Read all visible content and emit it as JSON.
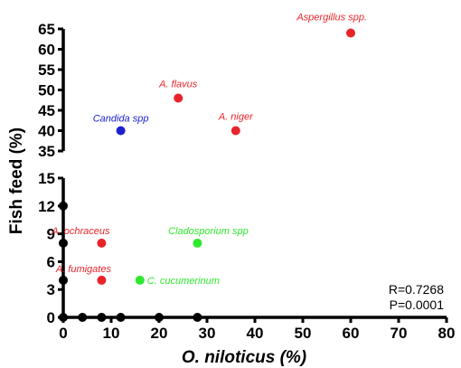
{
  "chart_data": {
    "type": "scatter",
    "xlabel": "O. niloticus (%)",
    "ylabel": "Fish feed (%)",
    "xlim": [
      0,
      80
    ],
    "x_ticks": [
      0,
      10,
      20,
      30,
      40,
      50,
      60,
      70,
      80
    ],
    "y_axis_segments": [
      {
        "range": [
          35,
          65
        ],
        "ticks": [
          35,
          40,
          45,
          50,
          55,
          60,
          65
        ]
      },
      {
        "range": [
          0,
          15
        ],
        "ticks": [
          0,
          3,
          6,
          9,
          12,
          15
        ]
      }
    ],
    "grid": false,
    "colors": {
      "red": "#e8242a",
      "green": "#2ee82e",
      "blue": "#1c22d0",
      "black": "#000000"
    },
    "labeled_points": [
      {
        "label": "Aspergillus spp.",
        "x": 60,
        "y": 64,
        "color": "red"
      },
      {
        "label": "A. flavus",
        "x": 24,
        "y": 48,
        "color": "red"
      },
      {
        "label": "Candida spp",
        "x": 12,
        "y": 40,
        "color": "blue"
      },
      {
        "label": "A. niger",
        "x": 36,
        "y": 40,
        "color": "red"
      },
      {
        "label": "A. ochraceus",
        "x": 8,
        "y": 8,
        "color": "red"
      },
      {
        "label": "Cladosporium spp",
        "x": 28,
        "y": 8,
        "color": "green"
      },
      {
        "label": "A. fumigates",
        "x": 8,
        "y": 4,
        "color": "red"
      },
      {
        "label": "C. cucumerinum",
        "x": 16,
        "y": 4,
        "color": "green"
      }
    ],
    "unlabeled_points": [
      {
        "x": 0,
        "y": 12
      },
      {
        "x": 0,
        "y": 8
      },
      {
        "x": 0,
        "y": 4
      },
      {
        "x": 0,
        "y": 0
      },
      {
        "x": 4,
        "y": 0
      },
      {
        "x": 8,
        "y": 0
      },
      {
        "x": 12,
        "y": 0
      },
      {
        "x": 20,
        "y": 0
      },
      {
        "x": 28,
        "y": 0
      }
    ],
    "annotations": [
      "R=0.7268",
      "P=0.0001"
    ]
  }
}
